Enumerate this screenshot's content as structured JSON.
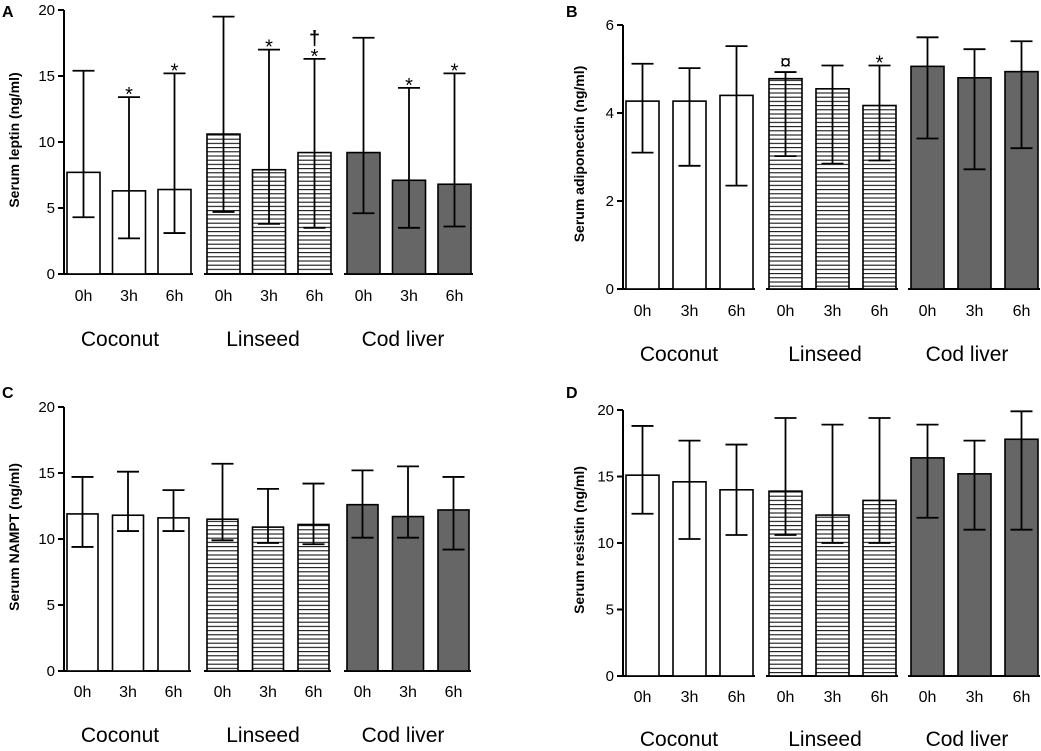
{
  "figure": {
    "background": "#ffffff"
  },
  "styles": {
    "Coconut": "white",
    "Linseed": "hatch",
    "Cod liver": "gray",
    "gray_color": "#666666"
  },
  "chart_data": [
    {
      "type": "bar",
      "panel": "A",
      "ylabel": "Serum leptin (ng/ml)",
      "ylim": [
        0,
        20
      ],
      "yticks": [
        "0",
        "5",
        "10",
        "15",
        "20"
      ],
      "groups": [
        "Coconut",
        "Linseed",
        "Cod liver"
      ],
      "categories": [
        "0h",
        "3h",
        "6h"
      ],
      "series": [
        {
          "name": "Coconut",
          "values": [
            7.7,
            6.3,
            6.4
          ],
          "err_low": [
            4.3,
            2.7,
            3.1
          ],
          "err_high": [
            15.4,
            13.4,
            15.2
          ],
          "annotations": [
            "",
            "*",
            "*"
          ]
        },
        {
          "name": "Linseed",
          "values": [
            10.6,
            7.9,
            9.2
          ],
          "err_low": [
            4.7,
            3.8,
            3.5
          ],
          "err_high": [
            19.5,
            17.0,
            16.3
          ],
          "annotations": [
            "",
            "*",
            "*"
          ],
          "annotations2": [
            "",
            "",
            "†"
          ]
        },
        {
          "name": "Cod liver",
          "values": [
            9.2,
            7.1,
            6.8
          ],
          "err_low": [
            4.6,
            3.5,
            3.6
          ],
          "err_high": [
            17.9,
            14.1,
            15.2
          ],
          "annotations": [
            "",
            "*",
            "*"
          ]
        }
      ]
    },
    {
      "type": "bar",
      "panel": "B",
      "ylabel": "Serum adiponectin (ng/ml)",
      "ylim": [
        0,
        6
      ],
      "yticks": [
        "0",
        "2",
        "4",
        "6"
      ],
      "groups": [
        "Coconut",
        "Linseed",
        "Cod liver"
      ],
      "categories": [
        "0h",
        "3h",
        "6h"
      ],
      "series": [
        {
          "name": "Coconut",
          "values": [
            4.27,
            4.27,
            4.4
          ],
          "err_low": [
            3.1,
            2.8,
            2.35
          ],
          "err_high": [
            5.12,
            5.02,
            5.52
          ],
          "annotations": [
            "",
            "",
            ""
          ]
        },
        {
          "name": "Linseed",
          "values": [
            4.78,
            4.55,
            4.17
          ],
          "err_low": [
            3.02,
            2.85,
            2.92
          ],
          "err_high": [
            4.93,
            5.08,
            5.08
          ],
          "annotations": [
            "¤",
            "",
            "*"
          ]
        },
        {
          "name": "Cod liver",
          "values": [
            5.06,
            4.8,
            4.94
          ],
          "err_low": [
            3.42,
            2.72,
            3.2
          ],
          "err_high": [
            5.72,
            5.45,
            5.63
          ],
          "annotations": [
            "",
            "",
            ""
          ]
        }
      ]
    },
    {
      "type": "bar",
      "panel": "C",
      "ylabel": "Serum NAMPT (ng/ml)",
      "ylim": [
        0,
        20
      ],
      "yticks": [
        "0",
        "5",
        "10",
        "15",
        "20"
      ],
      "groups": [
        "Coconut",
        "Linseed",
        "Cod liver"
      ],
      "categories": [
        "0h",
        "3h",
        "6h"
      ],
      "series": [
        {
          "name": "Coconut",
          "values": [
            11.9,
            11.8,
            11.6
          ],
          "err_low": [
            9.4,
            10.6,
            10.6
          ],
          "err_high": [
            14.7,
            15.1,
            13.7
          ],
          "annotations": [
            "",
            "",
            ""
          ]
        },
        {
          "name": "Linseed",
          "values": [
            11.5,
            10.9,
            11.1
          ],
          "err_low": [
            9.9,
            9.7,
            9.6
          ],
          "err_high": [
            15.7,
            13.8,
            14.2
          ],
          "annotations": [
            "",
            "",
            ""
          ]
        },
        {
          "name": "Cod liver",
          "values": [
            12.6,
            11.7,
            12.2
          ],
          "err_low": [
            10.1,
            10.1,
            9.2
          ],
          "err_high": [
            15.2,
            15.5,
            14.7
          ],
          "annotations": [
            "",
            "",
            ""
          ]
        }
      ]
    },
    {
      "type": "bar",
      "panel": "D",
      "ylabel": "Serum resistin (ng/ml)",
      "ylim": [
        0,
        20
      ],
      "yticks": [
        "0",
        "5",
        "10",
        "15",
        "20"
      ],
      "groups": [
        "Coconut",
        "Linseed",
        "Cod liver"
      ],
      "categories": [
        "0h",
        "3h",
        "6h"
      ],
      "series": [
        {
          "name": "Coconut",
          "values": [
            15.1,
            14.6,
            14.0
          ],
          "err_low": [
            12.2,
            10.3,
            10.6
          ],
          "err_high": [
            18.8,
            17.7,
            17.4
          ],
          "annotations": [
            "",
            "",
            ""
          ]
        },
        {
          "name": "Linseed",
          "values": [
            13.9,
            12.1,
            13.2
          ],
          "err_low": [
            10.6,
            10.0,
            10.0
          ],
          "err_high": [
            19.4,
            18.9,
            19.4
          ],
          "annotations": [
            "",
            "",
            ""
          ]
        },
        {
          "name": "Cod liver",
          "values": [
            16.4,
            15.2,
            17.8
          ],
          "err_low": [
            11.9,
            11.0,
            11.0
          ],
          "err_high": [
            18.9,
            17.7,
            19.9
          ],
          "annotations": [
            "",
            "",
            ""
          ]
        }
      ]
    }
  ]
}
